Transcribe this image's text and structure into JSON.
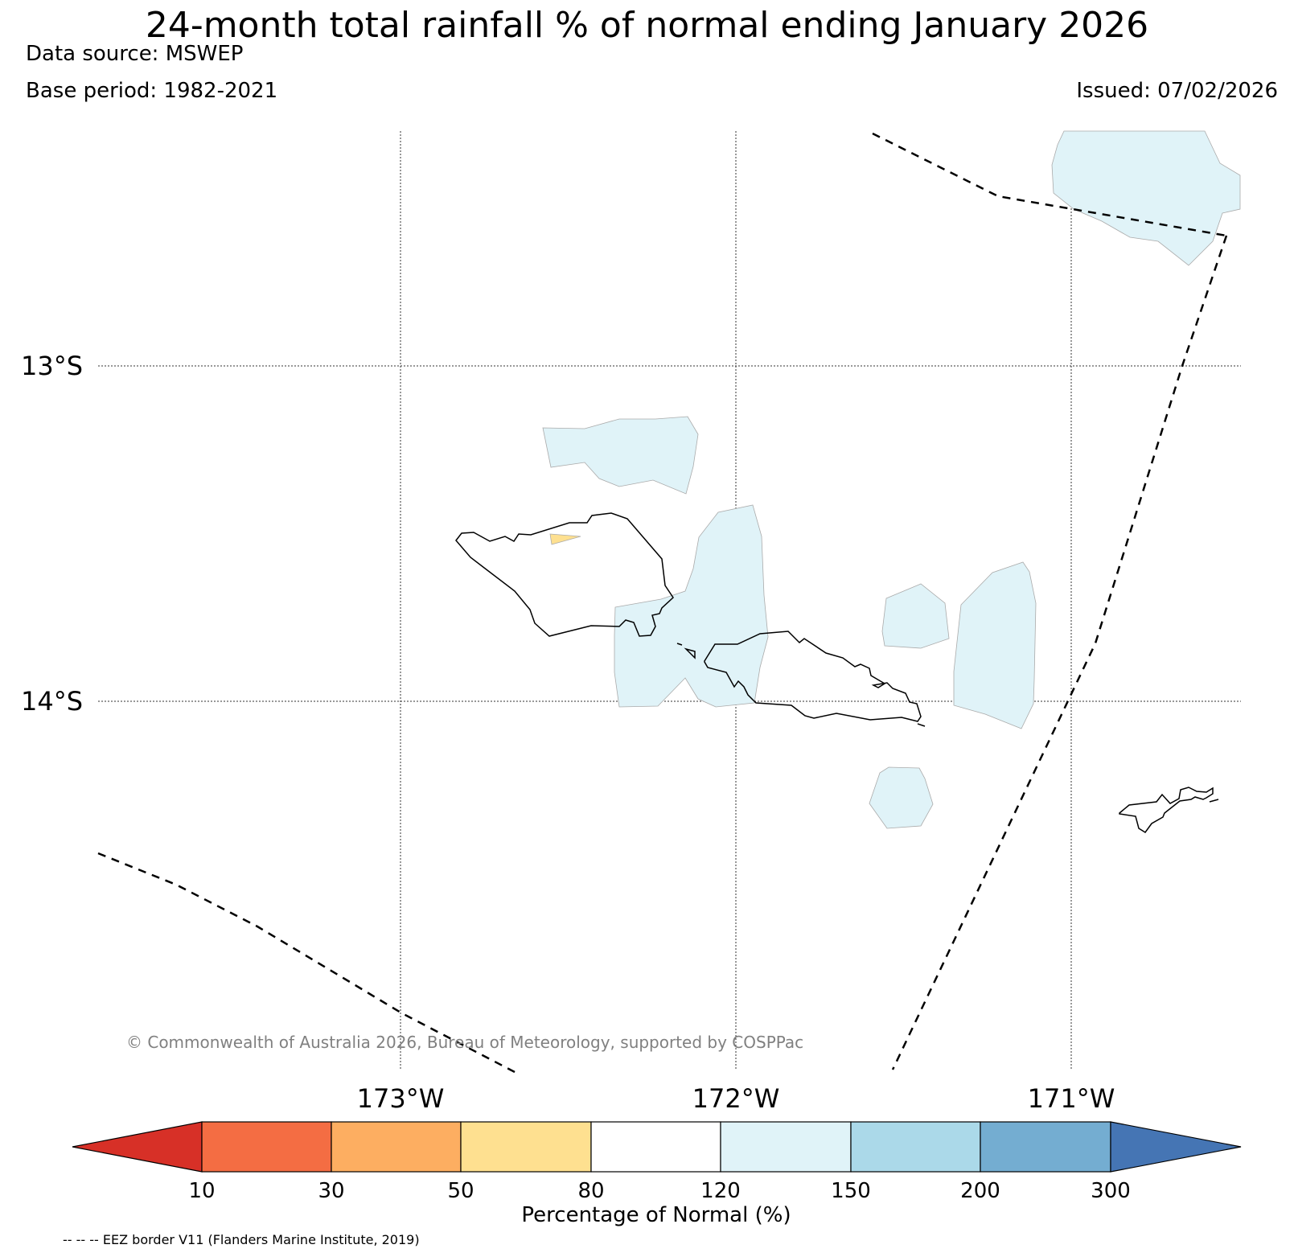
{
  "title": "24-month total rainfall % of normal ending January 2026",
  "data_source": "Data source: MSWEP",
  "base_period": "Base period: 1982-2021",
  "issued": "Issued: 07/02/2026",
  "map": {
    "lat_labels": [
      "13°S",
      "14°S"
    ],
    "lon_labels": [
      "173°W",
      "172°W",
      "171°W"
    ],
    "copyright": "© Commonwealth of Australia 2026, Bureau of Meteorology, supported by COSPPac"
  },
  "colorbar": {
    "title": "Percentage of Normal (%)",
    "ticks": [
      "10",
      "30",
      "50",
      "80",
      "120",
      "150",
      "200",
      "300"
    ],
    "colors": [
      "#d73027",
      "#f46d43",
      "#fdae61",
      "#fee090",
      "#ffffff",
      "#e0f3f8",
      "#abd9e9",
      "#74add1",
      "#4575b4"
    ]
  },
  "eez_note": "-- -- -- EEZ border V11 (Flanders Marine Institute, 2019)"
}
